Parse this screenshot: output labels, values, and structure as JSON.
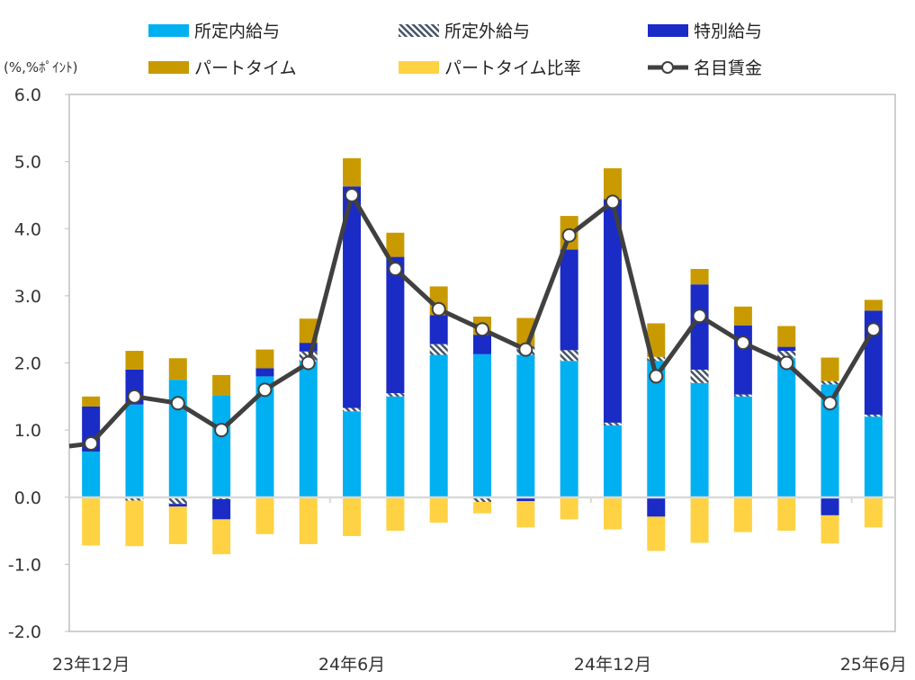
{
  "chart_data": {
    "type": "bar",
    "stacked": true,
    "unit_label": "(%,%ﾎﾟｲﾝﾄ)",
    "ylim": [
      -2.0,
      6.0
    ],
    "yticks": [
      "6.0",
      "5.0",
      "4.0",
      "3.0",
      "2.0",
      "1.0",
      "0.0",
      "-1.0",
      "-2.0"
    ],
    "ytick_values": [
      6,
      5,
      4,
      3,
      2,
      1,
      0,
      -1,
      -2
    ],
    "x_labels": [
      {
        "index": 0,
        "label": "23年12月"
      },
      {
        "index": 6,
        "label": "24年6月"
      },
      {
        "index": 12,
        "label": "24年12月"
      },
      {
        "index": 18,
        "label": "25年6月"
      }
    ],
    "categories": [
      "23/12",
      "24/1",
      "24/2",
      "24/3",
      "24/4",
      "24/5",
      "24/6",
      "24/7",
      "24/8",
      "24/9",
      "24/10",
      "24/11",
      "24/12",
      "25/1",
      "25/2",
      "25/3",
      "25/4",
      "25/5",
      "25/6"
    ],
    "series": [
      {
        "name": "所定内給与",
        "color": "#00B0F0",
        "values": [
          0.68,
          1.38,
          1.75,
          1.52,
          1.8,
          2.02,
          1.28,
          1.5,
          2.12,
          2.13,
          2.12,
          2.03,
          1.07,
          2.03,
          1.7,
          1.5,
          2.07,
          1.68,
          1.2
        ]
      },
      {
        "name": "所定外給与",
        "color": "hatch",
        "values": [
          0.0,
          -0.05,
          -0.1,
          -0.03,
          0.0,
          0.15,
          0.05,
          0.05,
          0.16,
          -0.07,
          0.13,
          0.16,
          0.04,
          0.06,
          0.2,
          0.03,
          0.11,
          0.05,
          0.03
        ]
      },
      {
        "name": "特別給与",
        "color": "#1A2BC6",
        "values": [
          0.67,
          0.52,
          -0.04,
          -0.3,
          0.12,
          0.13,
          3.3,
          2.03,
          0.43,
          0.29,
          -0.06,
          1.5,
          3.33,
          -0.29,
          1.27,
          1.03,
          0.06,
          -0.27,
          1.55
        ]
      },
      {
        "name": "パートタイム",
        "color": "#C99A00",
        "values": [
          0.15,
          0.28,
          0.32,
          0.3,
          0.28,
          0.36,
          0.42,
          0.36,
          0.43,
          0.27,
          0.42,
          0.5,
          0.46,
          0.5,
          0.23,
          0.28,
          0.31,
          0.35,
          0.16
        ]
      },
      {
        "name": "パートタイム比率",
        "color": "#FFD243",
        "values": [
          -0.72,
          -0.68,
          -0.56,
          -0.52,
          -0.55,
          -0.7,
          -0.58,
          -0.5,
          -0.38,
          -0.17,
          -0.39,
          -0.33,
          -0.48,
          -0.51,
          -0.68,
          -0.52,
          -0.5,
          -0.42,
          -0.45
        ]
      }
    ],
    "line": {
      "name": "名目賃金",
      "color": "#404040",
      "left_edge_value": 0.76,
      "values": [
        0.8,
        1.5,
        1.4,
        1.0,
        1.6,
        2.0,
        4.5,
        3.4,
        2.8,
        2.5,
        2.2,
        3.9,
        4.4,
        1.8,
        2.7,
        2.3,
        2.0,
        1.4,
        2.5
      ]
    },
    "legend_position": "top"
  }
}
